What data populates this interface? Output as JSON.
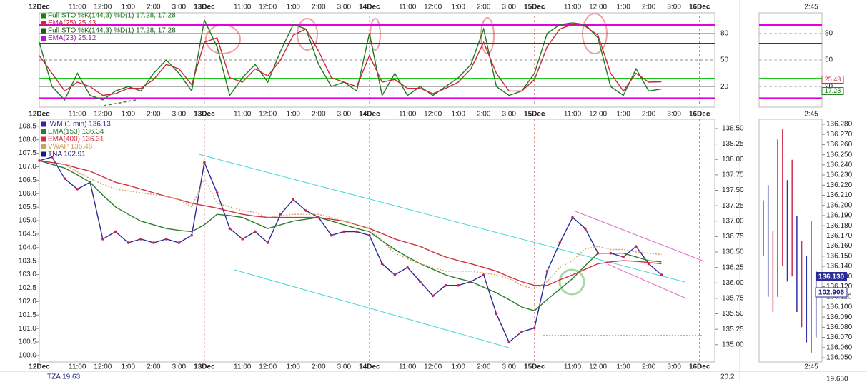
{
  "chart_data": [
    {
      "type": "line",
      "x": [
        0,
        0.5,
        1,
        1.5,
        2,
        2.5,
        3,
        3.5,
        4,
        4.5,
        5,
        5.5,
        6,
        6.5,
        7,
        7.5,
        8,
        8.5,
        9,
        9.5,
        10,
        10.5,
        11,
        11.5,
        12,
        12.5,
        13,
        13.5,
        14,
        14.5,
        15,
        15.5,
        16,
        16.5,
        17,
        17.5,
        18,
        18.5,
        19,
        19.5,
        20,
        20.5,
        21,
        21.5,
        22,
        22.5,
        23,
        23.5,
        24,
        24.5
      ],
      "series": [
        {
          "name": "Full STO %K(144,3) %D(1) 17.28, 17.28",
          "color": "#1e7a1e",
          "values": [
            70,
            20,
            5,
            35,
            10,
            5,
            15,
            20,
            15,
            35,
            50,
            35,
            15,
            95,
            65,
            10,
            30,
            45,
            25,
            60,
            90,
            85,
            45,
            20,
            25,
            15,
            80,
            10,
            35,
            10,
            20,
            10,
            20,
            30,
            45,
            85,
            20,
            10,
            15,
            35,
            80,
            90,
            92,
            90,
            75,
            20,
            10,
            40,
            15,
            17.28
          ]
        },
        {
          "name": "EMA(25) 25.43",
          "color": "#c8283c",
          "values": [
            55,
            35,
            15,
            25,
            20,
            10,
            12,
            18,
            18,
            28,
            45,
            40,
            22,
            70,
            75,
            30,
            25,
            40,
            32,
            50,
            78,
            85,
            60,
            30,
            25,
            20,
            55,
            25,
            28,
            18,
            18,
            12,
            18,
            25,
            40,
            70,
            35,
            15,
            15,
            28,
            65,
            85,
            90,
            88,
            78,
            35,
            15,
            35,
            25,
            25.43
          ]
        }
      ],
      "legend_extra": [
        {
          "name": "Full STO %K(144,3) %D(1) 17.28, 17.28",
          "color": "#1e5a1e"
        },
        {
          "name": "EMA(23) 25.12",
          "color": "#a020c0"
        }
      ],
      "xlim": [
        0,
        26.6
      ],
      "xticks": [
        {
          "value": 0,
          "label": "12Dec"
        },
        {
          "value": 1.5,
          "label": "11:00"
        },
        {
          "value": 2.5,
          "label": "12:00"
        },
        {
          "value": 3.5,
          "label": "1:00"
        },
        {
          "value": 4.5,
          "label": "2:00"
        },
        {
          "value": 5.5,
          "label": "3:00"
        },
        {
          "value": 6.5,
          "label": "13Dec"
        },
        {
          "value": 8,
          "label": "11:00"
        },
        {
          "value": 9,
          "label": "12:00"
        },
        {
          "value": 10,
          "label": "1:00"
        },
        {
          "value": 11,
          "label": "2:00"
        },
        {
          "value": 12,
          "label": "3:00"
        },
        {
          "value": 13,
          "label": "14Dec"
        },
        {
          "value": 14.5,
          "label": "11:00"
        },
        {
          "value": 15.5,
          "label": "12:00"
        },
        {
          "value": 16.5,
          "label": "1:00"
        },
        {
          "value": 17.5,
          "label": "2:00"
        },
        {
          "value": 18.5,
          "label": "3:00"
        },
        {
          "value": 19.5,
          "label": "15Dec"
        },
        {
          "value": 21,
          "label": "11:00"
        },
        {
          "value": 22,
          "label": "12:00"
        },
        {
          "value": 23,
          "label": "1:00"
        },
        {
          "value": 24,
          "label": "2:00"
        },
        {
          "value": 25,
          "label": "3:00"
        },
        {
          "value": 26,
          "label": "16Dec"
        }
      ],
      "ylim": [
        0,
        100
      ],
      "yticks": [
        80,
        50,
        20
      ],
      "hlines": [
        {
          "value": 89.5,
          "color": "#e000e0"
        },
        {
          "value": 68.5,
          "color": "#8b1a1a"
        },
        {
          "value": 29,
          "color": "#22c822"
        },
        {
          "value": 7,
          "color": "#e000e0"
        }
      ]
    },
    {
      "type": "line",
      "x": [
        0,
        0.5,
        1,
        1.5,
        2,
        2.5,
        3,
        3.5,
        4,
        4.5,
        5,
        5.5,
        6,
        6.5,
        7,
        7.5,
        8,
        8.5,
        9,
        9.5,
        10,
        10.5,
        11,
        11.5,
        12,
        12.5,
        13,
        13.5,
        14,
        14.5,
        15,
        15.5,
        16,
        16.5,
        17,
        17.5,
        18,
        18.5,
        19,
        19.5,
        20,
        20.5,
        21,
        21.5,
        22,
        22.5,
        23,
        23.5,
        24,
        24.5
      ],
      "series": [
        {
          "name": "IWM (1 min) 136.13",
          "color": "#2a2a9a",
          "axis": "y2",
          "values": [
            137.98,
            138.04,
            137.69,
            137.52,
            137.63,
            136.71,
            136.83,
            136.65,
            136.71,
            136.65,
            136.71,
            136.65,
            136.77,
            137.95,
            137.46,
            136.88,
            136.71,
            136.83,
            136.65,
            137.11,
            137.35,
            137.17,
            137.06,
            136.77,
            136.83,
            136.83,
            136.77,
            136.31,
            136.13,
            136.25,
            136.02,
            135.79,
            135.96,
            135.96,
            136.02,
            136.13,
            135.5,
            135.04,
            135.21,
            135.27,
            136.19,
            136.65,
            137.06,
            136.88,
            136.48,
            136.48,
            136.42,
            136.59,
            136.31,
            136.13
          ]
        },
        {
          "name": "EMA(153) 136.34",
          "color": "#2e7d2e",
          "axis": "y2",
          "values": [
            137.98,
            137.92,
            137.86,
            137.75,
            137.63,
            137.42,
            137.23,
            137.11,
            137.0,
            136.94,
            136.88,
            136.85,
            136.83,
            136.94,
            137.11,
            137.09,
            137.06,
            136.97,
            136.88,
            136.94,
            137.0,
            137.03,
            137.06,
            137.0,
            136.94,
            136.88,
            136.83,
            136.68,
            136.54,
            136.42,
            136.31,
            136.22,
            136.13,
            136.07,
            136.02,
            135.93,
            135.84,
            135.73,
            135.61,
            135.55,
            135.73,
            135.9,
            136.07,
            136.28,
            136.48,
            136.48,
            136.48,
            136.42,
            136.36,
            136.34
          ]
        },
        {
          "name": "EMA(400) 136.31",
          "color": "#d03040",
          "axis": "y2",
          "values": [
            137.98,
            137.95,
            137.92,
            137.86,
            137.81,
            137.72,
            137.63,
            137.58,
            137.52,
            137.46,
            137.4,
            137.35,
            137.29,
            137.25,
            137.21,
            137.16,
            137.11,
            137.08,
            137.06,
            137.06,
            137.06,
            137.06,
            137.06,
            137.03,
            137.0,
            136.94,
            136.88,
            136.8,
            136.71,
            136.65,
            136.59,
            136.5,
            136.42,
            136.36,
            136.31,
            136.25,
            136.19,
            136.1,
            136.02,
            135.96,
            135.96,
            136.05,
            136.13,
            136.22,
            136.31,
            136.34,
            136.36,
            136.35,
            136.33,
            136.31
          ]
        },
        {
          "name": "VWAP 136.46",
          "color": "#d4a060",
          "axis": "y2",
          "dashed": true,
          "values": [
            null,
            null,
            137.92,
            137.8,
            137.69,
            137.6,
            137.52,
            137.49,
            137.46,
            137.43,
            137.4,
            137.35,
            137.23,
            137.69,
            137.29,
            137.23,
            137.17,
            137.14,
            137.06,
            137.09,
            137.11,
            137.11,
            137.11,
            137.06,
            137.0,
            136.94,
            136.88,
            136.68,
            136.48,
            136.39,
            136.31,
            136.25,
            136.19,
            136.19,
            136.19,
            136.16,
            136.13,
            136.07,
            135.96,
            135.9,
            136.02,
            136.25,
            136.36,
            136.55,
            136.59,
            136.54,
            136.54,
            136.5,
            136.48,
            136.46
          ]
        }
      ],
      "legend_extra": [
        {
          "name": "TNA 102.91",
          "color": "#1a1a80"
        }
      ],
      "xlim": [
        0,
        26.6
      ],
      "xticks": [
        {
          "value": 0,
          "label": "12Dec"
        },
        {
          "value": 1.5,
          "label": "11:00"
        },
        {
          "value": 2.5,
          "label": "12:00"
        },
        {
          "value": 3.5,
          "label": "1:00"
        },
        {
          "value": 4.5,
          "label": "2:00"
        },
        {
          "value": 5.5,
          "label": "3:00"
        },
        {
          "value": 6.5,
          "label": "13Dec"
        },
        {
          "value": 8,
          "label": "11:00"
        },
        {
          "value": 9,
          "label": "12:00"
        },
        {
          "value": 10,
          "label": "1:00"
        },
        {
          "value": 11,
          "label": "2:00"
        },
        {
          "value": 12,
          "label": "3:00"
        },
        {
          "value": 13,
          "label": "14Dec"
        },
        {
          "value": 14.5,
          "label": "11:00"
        },
        {
          "value": 15.5,
          "label": "12:00"
        },
        {
          "value": 16.5,
          "label": "1:00"
        },
        {
          "value": 17.5,
          "label": "2:00"
        },
        {
          "value": 18.5,
          "label": "3:00"
        },
        {
          "value": 19.5,
          "label": "15Dec"
        },
        {
          "value": 21,
          "label": "11:00"
        },
        {
          "value": 22,
          "label": "12:00"
        },
        {
          "value": 23,
          "label": "1:00"
        },
        {
          "value": 24,
          "label": "2:00"
        },
        {
          "value": 25,
          "label": "3:00"
        },
        {
          "value": 26,
          "label": "16Dec"
        }
      ],
      "ylim": [
        99.76,
        108.76
      ],
      "yticks": [
        {
          "value": 108.5,
          "label": "108.5"
        },
        {
          "value": 108,
          "label": "108.0"
        },
        {
          "value": 107.5,
          "label": "107.5"
        },
        {
          "value": 107,
          "label": "107.0"
        },
        {
          "value": 106.5,
          "label": "106.5"
        },
        {
          "value": 106,
          "label": "106.0"
        },
        {
          "value": 105.5,
          "label": "105.5"
        },
        {
          "value": 105,
          "label": "105.0"
        },
        {
          "value": 104.5,
          "label": "104.5"
        },
        {
          "value": 104,
          "label": "104.0"
        },
        {
          "value": 103.5,
          "label": "103.5"
        },
        {
          "value": 103,
          "label": "103.0"
        },
        {
          "value": 102.5,
          "label": "102.5"
        },
        {
          "value": 102,
          "label": "102.0"
        },
        {
          "value": 101.5,
          "label": "101.5"
        },
        {
          "value": 101,
          "label": "101.0"
        },
        {
          "value": 100.5,
          "label": "100.5"
        },
        {
          "value": 100,
          "label": "100.0"
        }
      ],
      "y2lim": [
        134.72,
        138.65
      ],
      "y2ticks": [
        {
          "value": 138.5,
          "label": "138.50"
        },
        {
          "value": 138.25,
          "label": "138.25"
        },
        {
          "value": 138,
          "label": "138.00"
        },
        {
          "value": 137.75,
          "label": "137.75"
        },
        {
          "value": 137.5,
          "label": "137.50"
        },
        {
          "value": 137.25,
          "label": "137.25"
        },
        {
          "value": 137,
          "label": "137.00"
        },
        {
          "value": 136.75,
          "label": "136.75"
        },
        {
          "value": 136.5,
          "label": "136.50"
        },
        {
          "value": 136.25,
          "label": "136.25"
        },
        {
          "value": 136,
          "label": "136.00"
        },
        {
          "value": 135.75,
          "label": "135.75"
        },
        {
          "value": 135.5,
          "label": "135.50"
        },
        {
          "value": 135.25,
          "label": "135.25"
        },
        {
          "value": 135,
          "label": "135.00"
        }
      ]
    }
  ],
  "side_panel": {
    "time_label": "2:45",
    "stoch_labels": [
      {
        "text": "25.43",
        "value": 25.43,
        "color": "#c8283c"
      },
      {
        "text": "17.28",
        "value": 17.28,
        "color": "#1e7a1e"
      }
    ],
    "ylim": [
      136.05,
      136.28
    ],
    "yticks": [
      {
        "value": 136.28,
        "label": "136.280"
      },
      {
        "value": 136.27,
        "label": "136.270"
      },
      {
        "value": 136.26,
        "label": "136.260"
      },
      {
        "value": 136.25,
        "label": "136.250"
      },
      {
        "value": 136.24,
        "label": "136.240"
      },
      {
        "value": 136.23,
        "label": "136.230"
      },
      {
        "value": 136.22,
        "label": "136.220"
      },
      {
        "value": 136.21,
        "label": "136.210"
      },
      {
        "value": 136.2,
        "label": "136.200"
      },
      {
        "value": 136.19,
        "label": "136.190"
      },
      {
        "value": 136.18,
        "label": "136.180"
      },
      {
        "value": 136.17,
        "label": "136.170"
      },
      {
        "value": 136.16,
        "label": "136.160"
      },
      {
        "value": 136.15,
        "label": "136.150"
      },
      {
        "value": 136.14,
        "label": "136.140"
      },
      {
        "value": 136.13,
        "label": "136.130"
      },
      {
        "value": 136.12,
        "label": "136.120"
      },
      {
        "value": 136.11,
        "label": "136.110"
      },
      {
        "value": 136.1,
        "label": "136.100"
      },
      {
        "value": 136.09,
        "label": "136.090"
      },
      {
        "value": 136.08,
        "label": "136.080"
      },
      {
        "value": 136.07,
        "label": "136.070"
      },
      {
        "value": 136.06,
        "label": "136.060"
      },
      {
        "value": 136.05,
        "label": "136.050"
      }
    ],
    "bars": [
      {
        "high": 136.205,
        "low": 136.15
      },
      {
        "high": 136.22,
        "low": 136.11
      },
      {
        "high": 136.175,
        "low": 136.095
      },
      {
        "high": 136.265,
        "low": 136.11
      },
      {
        "high": 136.275,
        "low": 136.14
      },
      {
        "high": 136.225,
        "low": 136.125
      },
      {
        "high": 136.245,
        "low": 136.13
      },
      {
        "high": 136.19,
        "low": 136.095
      },
      {
        "high": 136.165,
        "low": 136.08
      },
      {
        "high": 136.15,
        "low": 136.065
      },
      {
        "high": 136.185,
        "low": 136.055
      },
      {
        "high": 136.135,
        "low": 136.07
      }
    ],
    "price_label": "136.130",
    "tna_label": "102.906"
  },
  "bottom_strip": {
    "legend": "TZA 19.63",
    "left_tick": "20.2",
    "right_tick": "19.650"
  }
}
